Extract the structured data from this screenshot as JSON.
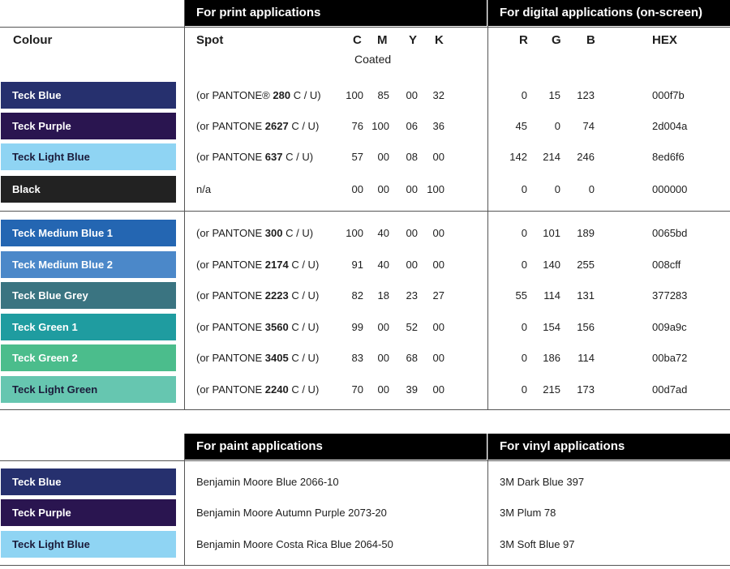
{
  "headers": {
    "print": "For print applications",
    "digital": "For digital applications (on-screen)",
    "paint": "For paint applications",
    "vinyl": "For vinyl applications"
  },
  "column_labels": {
    "colour": "Colour",
    "spot": "Spot",
    "c": "C",
    "m": "M",
    "y": "Y",
    "k": "K",
    "coated": "Coated",
    "r": "R",
    "g": "G",
    "b": "B",
    "hex": "HEX"
  },
  "pantone_prefix": "(or PANTONE",
  "pantone_prefix_reg": "(or PANTONE®",
  "pantone_suffix": "C / U)",
  "colors": [
    {
      "name": "Teck Blue",
      "bg": "#26306e",
      "text_style": "dark",
      "spot_prefix": "(or PANTONE®",
      "pantone": "280",
      "c": "100",
      "m": "85",
      "y": "00",
      "k": "32",
      "r": "0",
      "g": "15",
      "b": "123",
      "hex": "000f7b"
    },
    {
      "name": "Teck Purple",
      "bg": "#2a1550",
      "text_style": "dark",
      "spot_prefix": "(or PANTONE",
      "pantone": "2627",
      "c": "76",
      "m": "100",
      "y": "06",
      "k": "36",
      "r": "45",
      "g": "0",
      "b": "74",
      "hex": "2d004a"
    },
    {
      "name": "Teck Light Blue",
      "bg": "#8fd4f3",
      "text_style": "light",
      "spot_prefix": "(or PANTONE",
      "pantone": "637",
      "c": "57",
      "m": "00",
      "y": "08",
      "k": "00",
      "r": "142",
      "g": "214",
      "b": "246",
      "hex": "8ed6f6"
    },
    {
      "name": "Black",
      "bg": "#222222",
      "text_style": "dark",
      "spot_plain": "n/a",
      "c": "00",
      "m": "00",
      "y": "00",
      "k": "100",
      "r": "0",
      "g": "0",
      "b": "0",
      "hex": "000000"
    },
    {
      "name": "Teck Medium Blue 1",
      "bg": "#2466b2",
      "text_style": "dark",
      "spot_prefix": "(or PANTONE",
      "pantone": "300",
      "c": "100",
      "m": "40",
      "y": "00",
      "k": "00",
      "r": "0",
      "g": "101",
      "b": "189",
      "hex": "0065bd"
    },
    {
      "name": "Teck Medium Blue 2",
      "bg": "#4b88c9",
      "text_style": "dark",
      "spot_prefix": "(or PANTONE",
      "pantone": "2174",
      "c": "91",
      "m": "40",
      "y": "00",
      "k": "00",
      "r": "0",
      "g": "140",
      "b": "255",
      "hex": "008cff"
    },
    {
      "name": "Teck Blue Grey",
      "bg": "#3a7481",
      "text_style": "dark",
      "spot_prefix": "(or PANTONE",
      "pantone": "2223",
      "c": "82",
      "m": "18",
      "y": "23",
      "k": "27",
      "r": "55",
      "g": "114",
      "b": "131",
      "hex": "377283"
    },
    {
      "name": "Teck Green 1",
      "bg": "#1f9ca0",
      "text_style": "dark",
      "spot_prefix": "(or PANTONE",
      "pantone": "3560",
      "c": "99",
      "m": "00",
      "y": "52",
      "k": "00",
      "r": "0",
      "g": "154",
      "b": "156",
      "hex": "009a9c"
    },
    {
      "name": "Teck Green 2",
      "bg": "#4bbd8c",
      "text_style": "dark",
      "spot_prefix": "(or PANTONE",
      "pantone": "3405",
      "c": "83",
      "m": "00",
      "y": "68",
      "k": "00",
      "r": "0",
      "g": "186",
      "b": "114",
      "hex": "00ba72"
    },
    {
      "name": "Teck Light Green",
      "bg": "#66c6b0",
      "text_style": "light",
      "spot_prefix": "(or PANTONE",
      "pantone": "2240",
      "c": "70",
      "m": "00",
      "y": "39",
      "k": "00",
      "r": "0",
      "g": "215",
      "b": "173",
      "hex": "00d7ad"
    }
  ],
  "paint_vinyl": [
    {
      "name": "Teck Blue",
      "bg": "#26306e",
      "text_style": "dark",
      "paint": "Benjamin Moore Blue 2066-10",
      "vinyl": "3M Dark Blue 397"
    },
    {
      "name": "Teck Purple",
      "bg": "#2a1550",
      "text_style": "dark",
      "paint": "Benjamin Moore Autumn Purple 2073-20",
      "vinyl": "3M Plum 78"
    },
    {
      "name": "Teck Light Blue",
      "bg": "#8fd4f3",
      "text_style": "light",
      "paint": "Benjamin Moore Costa Rica Blue 2064-50",
      "vinyl": "3M Soft Blue 97"
    }
  ]
}
